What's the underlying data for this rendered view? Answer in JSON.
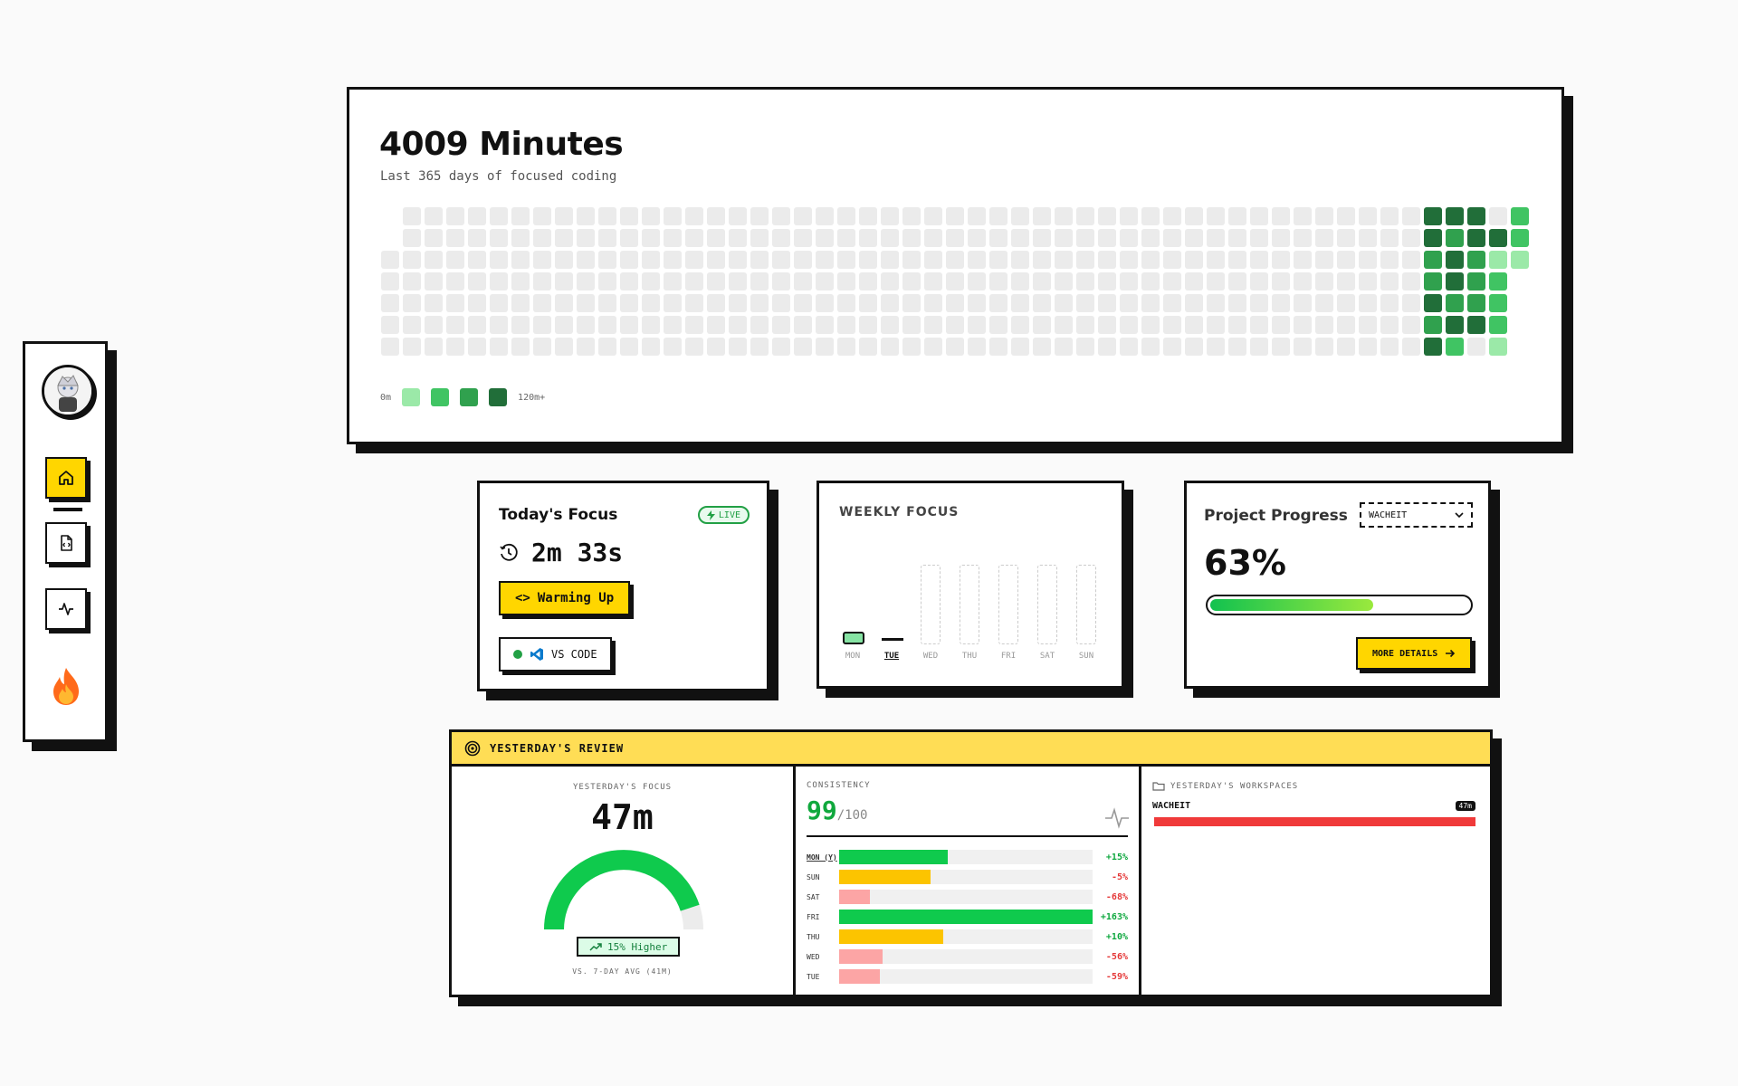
{
  "sidebar": {
    "nav": [
      {
        "name": "home-icon"
      },
      {
        "name": "file-code-icon"
      },
      {
        "name": "activity-icon"
      }
    ],
    "streak_icon": "fire-icon"
  },
  "heatmap": {
    "title": "4009 Minutes",
    "subtitle": "Last 365 days of focused coding",
    "legend_min": "0m",
    "legend_max": "120m+",
    "legend_colors": [
      "#9be9a8",
      "#40c463",
      "#30a14e",
      "#216e39"
    ],
    "active_weeks": [
      [
        4,
        4,
        3,
        3,
        4,
        3,
        4
      ],
      [
        4,
        3,
        4,
        4,
        3,
        4,
        2
      ],
      [
        4,
        4,
        3,
        3,
        3,
        4,
        0
      ],
      [
        0,
        4,
        1,
        2,
        2,
        2,
        1
      ],
      [
        2,
        2,
        1,
        0,
        0,
        0,
        0
      ]
    ]
  },
  "today": {
    "title": "Today's Focus",
    "live": "LIVE",
    "timer": "2m 33s",
    "status_label": "Warming Up",
    "editor_label": "VS CODE"
  },
  "weekly": {
    "title": "WEEKLY FOCUS",
    "days": [
      "MON",
      "TUE",
      "WED",
      "THU",
      "FRI",
      "SAT",
      "SUN"
    ],
    "today_index": 1,
    "level_fraction": [
      0.12,
      0,
      null,
      null,
      null,
      null,
      null
    ]
  },
  "project": {
    "title": "Project Progress",
    "selected": "WACHEIT",
    "percent_label": "63%",
    "progress": 0.63,
    "button": "MORE DETAILS"
  },
  "review": {
    "title": "YESTERDAY'S REVIEW",
    "focus_label": "YESTERDAY'S FOCUS",
    "focus_value": "47m",
    "gauge_fraction": 0.9,
    "compare_badge": "15% Higher",
    "compare_note": "VS. 7-DAY AVG (41M)",
    "consistency_label": "CONSISTENCY",
    "consistency_score": "99",
    "consistency_max": "/100",
    "rows": [
      {
        "day": "MON (Y)",
        "fraction": 0.43,
        "color": "#0fca4d",
        "delta": "+15%",
        "delta_color": "#0fa83f"
      },
      {
        "day": "SUN",
        "fraction": 0.36,
        "color": "#fcc400",
        "delta": "-5%",
        "delta_color": "#e53939"
      },
      {
        "day": "SAT",
        "fraction": 0.12,
        "color": "#fca5a5",
        "delta": "-68%",
        "delta_color": "#e53939"
      },
      {
        "day": "FRI",
        "fraction": 1.0,
        "color": "#0fca4d",
        "delta": "+163%",
        "delta_color": "#0fa83f"
      },
      {
        "day": "THU",
        "fraction": 0.41,
        "color": "#fcc400",
        "delta": "+10%",
        "delta_color": "#0fa83f"
      },
      {
        "day": "WED",
        "fraction": 0.17,
        "color": "#fca5a5",
        "delta": "-56%",
        "delta_color": "#e53939"
      },
      {
        "day": "TUE",
        "fraction": 0.16,
        "color": "#fca5a5",
        "delta": "-59%",
        "delta_color": "#e53939"
      }
    ],
    "workspaces_label": "YESTERDAY'S WORKSPACES",
    "workspace": {
      "name": "WACHEIT",
      "time": "47m",
      "fraction": 1.0,
      "color": "#f03a3a"
    }
  }
}
